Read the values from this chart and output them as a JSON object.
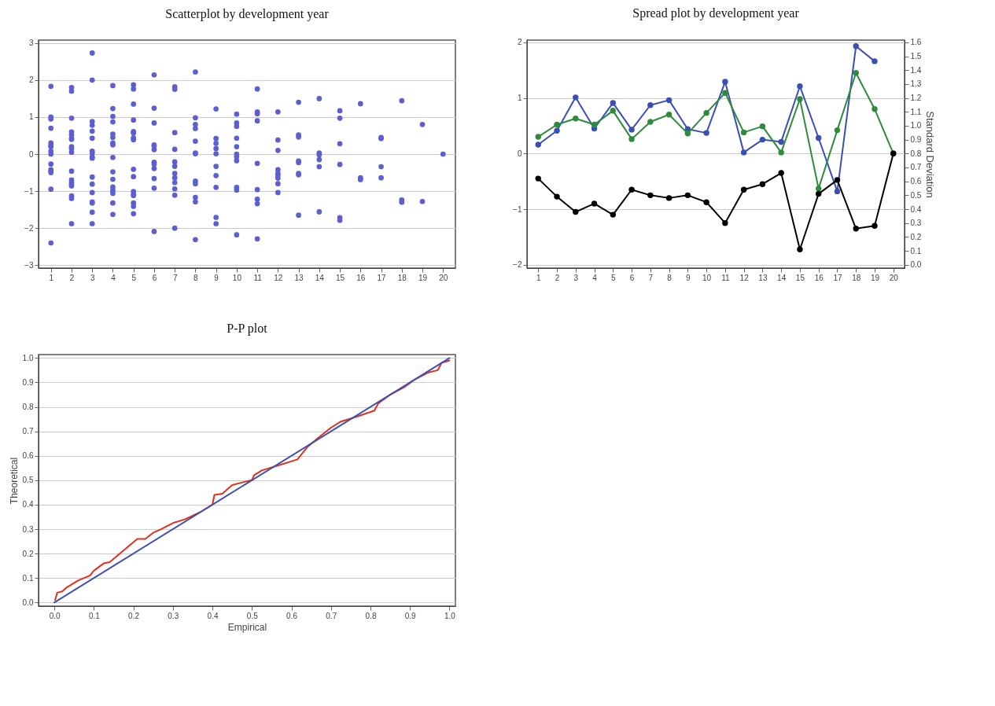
{
  "chart_data": [
    {
      "type": "scatter",
      "title": "Scatterplot by development year",
      "marker": "circle",
      "grid": "y",
      "xlim": [
        0.4,
        20.6
      ],
      "xticks": [
        1,
        2,
        3,
        4,
        5,
        6,
        7,
        8,
        9,
        10,
        11,
        12,
        13,
        14,
        15,
        16,
        17,
        18,
        19,
        20
      ],
      "ylim": [
        -3.08,
        3.08
      ],
      "yticks": [
        -3,
        -2,
        -1,
        0,
        1,
        2,
        3
      ],
      "series": [
        {
          "color": "#5b5fd0",
          "x": [
            1,
            1,
            1,
            1,
            1,
            1,
            1,
            1,
            1,
            1,
            1,
            1,
            1,
            1,
            1,
            2,
            2,
            2,
            2,
            2,
            2,
            2,
            2,
            2,
            2,
            2,
            2,
            2,
            2,
            2,
            2,
            2,
            2,
            3,
            3,
            3,
            3,
            3,
            3,
            3,
            3,
            3,
            3,
            3,
            3,
            3,
            3,
            3,
            3,
            3,
            4,
            4,
            4,
            4,
            4,
            4,
            4,
            4,
            4,
            4,
            4,
            4,
            4,
            4,
            4,
            4,
            5,
            5,
            5,
            5,
            5,
            5,
            5,
            5,
            5,
            5,
            5,
            5,
            5,
            5,
            5,
            5,
            6,
            6,
            6,
            6,
            6,
            6,
            6,
            6,
            6,
            6,
            6,
            6,
            7,
            7,
            7,
            7,
            7,
            7,
            7,
            7,
            7,
            7,
            7,
            7,
            8,
            8,
            8,
            8,
            8,
            8,
            8,
            8,
            8,
            8,
            8,
            8,
            9,
            9,
            9,
            9,
            9,
            9,
            9,
            9,
            9,
            9,
            10,
            10,
            10,
            10,
            10,
            10,
            10,
            10,
            10,
            10,
            10,
            11,
            11,
            11,
            11,
            11,
            11,
            11,
            11,
            11,
            12,
            12,
            12,
            12,
            12,
            12,
            12,
            12,
            12,
            13,
            13,
            13,
            13,
            13,
            13,
            13,
            13,
            14,
            14,
            14,
            14,
            14,
            14,
            15,
            15,
            15,
            15,
            15,
            15,
            16,
            16,
            16,
            17,
            17,
            17,
            17,
            18,
            18,
            18,
            19,
            19,
            20
          ],
          "values": [
            1.83,
            1.0,
            0.95,
            0.7,
            0.3,
            0.23,
            0.2,
            0.08,
            0,
            -0.27,
            -0.42,
            -0.46,
            -0.5,
            -0.95,
            -2.4,
            1.8,
            1.7,
            0.97,
            0.6,
            0.52,
            0.43,
            0.4,
            0.2,
            0.15,
            0.05,
            -0.46,
            -0.7,
            -0.77,
            -0.82,
            -0.86,
            -1.13,
            -1.2,
            -1.88,
            2.73,
            2.0,
            0.88,
            0.78,
            0.62,
            0.43,
            0.08,
            0.03,
            -0.07,
            -0.11,
            -0.62,
            -0.81,
            -1.04,
            -1.29,
            -1.32,
            -1.57,
            -1.88,
            1.85,
            1.23,
            1.02,
            0.87,
            0.54,
            0.45,
            0.3,
            0.25,
            -0.09,
            -0.48,
            -0.68,
            -0.89,
            -0.98,
            -1.06,
            -1.32,
            -1.63,
            1.87,
            1.76,
            1.35,
            0.92,
            0.61,
            0.57,
            0.44,
            0.39,
            -0.41,
            -0.61,
            -1.01,
            -1.09,
            -1.12,
            -1.32,
            -1.41,
            -1.61,
            2.14,
            1.24,
            0.84,
            0.25,
            0.22,
            0.12,
            -0.22,
            -0.27,
            -0.39,
            -0.66,
            -0.92,
            -2.09,
            1.82,
            1.75,
            0.58,
            0.13,
            -0.21,
            -0.33,
            -0.52,
            -0.64,
            -0.77,
            -0.94,
            -1.11,
            -2.0,
            2.22,
            0.98,
            0.8,
            0.69,
            0.35,
            0.03,
            0.01,
            -0.73,
            -0.8,
            -1.17,
            -1.29,
            -2.31,
            1.22,
            0.42,
            0.29,
            0.15,
            0.01,
            -0.33,
            -0.58,
            -0.9,
            -1.71,
            -1.88,
            1.08,
            0.84,
            0.75,
            0.43,
            0.2,
            0,
            -0.07,
            -0.18,
            -0.9,
            -0.97,
            -2.18,
            1.76,
            1.14,
            1.09,
            0.9,
            -0.25,
            -0.96,
            -1.22,
            -1.34,
            -2.29,
            1.14,
            0.38,
            0.1,
            -0.42,
            -0.52,
            -0.57,
            -0.65,
            -0.8,
            -1.04,
            1.4,
            0.52,
            0.46,
            -0.19,
            -0.23,
            -0.52,
            -0.56,
            -1.65,
            1.5,
            0.03,
            -0.02,
            -0.15,
            -0.34,
            -1.56,
            1.17,
            0.97,
            0.28,
            -0.28,
            -1.72,
            -1.79,
            1.36,
            -0.64,
            -0.69,
            0.45,
            0.42,
            -0.34,
            -0.64,
            1.44,
            -1.24,
            -1.3,
            0.8,
            -1.28,
            0
          ]
        }
      ]
    },
    {
      "type": "line",
      "title": "Spread plot by development year",
      "y2label": "Standard Deviation",
      "marker": "circle",
      "grid": "y",
      "x": [
        1,
        2,
        3,
        4,
        5,
        6,
        7,
        8,
        9,
        10,
        11,
        12,
        13,
        14,
        15,
        16,
        17,
        18,
        19,
        20
      ],
      "xlim": [
        0.4,
        20.6
      ],
      "xticks": [
        1,
        2,
        3,
        4,
        5,
        6,
        7,
        8,
        9,
        10,
        11,
        12,
        13,
        14,
        15,
        16,
        17,
        18,
        19,
        20
      ],
      "ylim": [
        -2.06,
        2.04
      ],
      "yticks": [
        -2,
        -1,
        0,
        1,
        2
      ],
      "y2lim": [
        -0.024,
        1.616
      ],
      "y2ticks": [
        {
          "value": 0,
          "label": "0.0"
        },
        0.1,
        0.2,
        0.3,
        0.4,
        0.5,
        0.6,
        0.7,
        0.8,
        0.9,
        {
          "value": 1,
          "label": "1.0"
        },
        1.1,
        1.2,
        1.3,
        1.4,
        1.5,
        1.6
      ],
      "series": [
        {
          "color": "#3b4fb3",
          "values": [
            0.16,
            0.41,
            1.01,
            0.45,
            0.91,
            0.43,
            0.87,
            0.96,
            0.44,
            0.37,
            1.29,
            0.02,
            0.25,
            0.21,
            1.21,
            0.28,
            -0.68,
            1.93,
            1.66,
            null
          ]
        },
        {
          "color": "#2e8b3c",
          "values": [
            0.3,
            0.52,
            0.63,
            0.52,
            0.77,
            0.26,
            0.57,
            0.7,
            0.36,
            0.73,
            1.09,
            0.38,
            0.49,
            0.02,
            0.98,
            -0.63,
            0.42,
            1.45,
            0.8,
            0
          ]
        },
        {
          "color": "#000000",
          "axis": "y2",
          "values": [
            0.62,
            0.49,
            0.38,
            0.44,
            0.36,
            0.54,
            0.5,
            0.48,
            0.5,
            0.45,
            0.3,
            0.54,
            0.58,
            0.66,
            0.11,
            0.51,
            0.61,
            0.26,
            0.28,
            0.8
          ]
        }
      ]
    },
    {
      "type": "line",
      "title": "P-P plot",
      "xlabel": "Empirical",
      "ylabel": "Theoretical",
      "grid": "y",
      "xlim": [
        -0.04,
        1.015
      ],
      "ylim": [
        -0.015,
        1.014
      ],
      "xticks": [
        {
          "value": 0,
          "label": "0.0"
        },
        0.1,
        0.2,
        0.3,
        0.4,
        0.5,
        0.6,
        0.7,
        0.8,
        0.9,
        {
          "value": 1,
          "label": "1.0"
        }
      ],
      "yticks": [
        {
          "value": 0,
          "label": "0.0"
        },
        0.1,
        0.2,
        0.3,
        0.4,
        0.5,
        0.6,
        0.7,
        0.8,
        0.9,
        {
          "value": 1,
          "label": "1.0"
        }
      ],
      "series": [
        {
          "color": "#e0301e",
          "x": [
            0.002,
            0.007,
            0.02,
            0.03,
            0.06,
            0.09,
            0.1,
            0.125,
            0.14,
            0.195,
            0.21,
            0.23,
            0.25,
            0.27,
            0.3,
            0.33,
            0.37,
            0.4,
            0.405,
            0.425,
            0.45,
            0.485,
            0.5,
            0.505,
            0.525,
            0.565,
            0.615,
            0.64,
            0.665,
            0.7,
            0.725,
            0.765,
            0.81,
            0.82,
            0.85,
            0.885,
            0.91,
            0.945,
            0.97,
            0.98,
            1.0
          ],
          "values": [
            0.01,
            0.04,
            0.045,
            0.06,
            0.09,
            0.11,
            0.13,
            0.16,
            0.165,
            0.24,
            0.26,
            0.26,
            0.285,
            0.3,
            0.325,
            0.34,
            0.37,
            0.4,
            0.44,
            0.445,
            0.48,
            0.495,
            0.5,
            0.52,
            0.54,
            0.56,
            0.585,
            0.635,
            0.67,
            0.715,
            0.74,
            0.76,
            0.785,
            0.815,
            0.85,
            0.88,
            0.91,
            0.94,
            0.95,
            0.98,
            0.99
          ]
        },
        {
          "color": "#3b4fb3",
          "x": [
            0,
            1
          ],
          "values": [
            0,
            1
          ]
        }
      ]
    }
  ]
}
